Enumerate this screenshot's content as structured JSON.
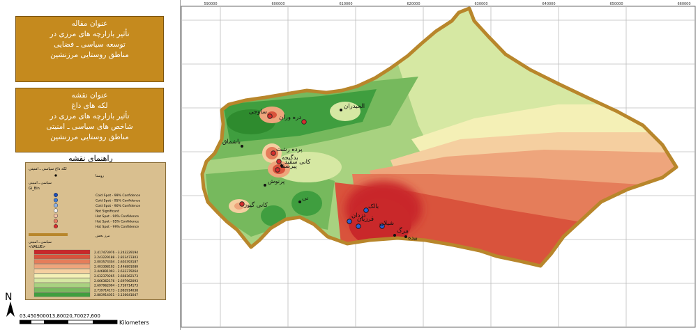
{
  "sidebar": {
    "article_box": {
      "heading": "عنوان مقاله",
      "lines": [
        "تأثیر بازارچه های مرزی در",
        "توسعه سیاسی ـ فضایی",
        "مناطق روستایی مرزنشین"
      ]
    },
    "map_box": {
      "heading": "عنوان نقشه",
      "lines": [
        "لکه های داغ",
        "تأثیر بازارچه های مرزی در",
        "شاخص های سیاسی ـ امنیتی",
        "مناطق روستایی مرزنشین"
      ]
    },
    "legend_title": "راهنمای نقشه",
    "legend": {
      "header": "لکه داغ سیاسی ـ امنیتی",
      "sub_header": "روستا",
      "section2": "سیاسی ـ امنیتی",
      "unit": "Gi_Bin",
      "hotspot_items": [
        {
          "label": "Cold Spot - 99% Confidence",
          "color": "#1f4fb8"
        },
        {
          "label": "Cold Spot - 95% Confidence",
          "color": "#3d7ad6"
        },
        {
          "label": "Cold Spot - 90% Confidence",
          "color": "#8fb3e6"
        },
        {
          "label": "Not Significant",
          "color": "#f2f2f2"
        },
        {
          "label": "Hot Spot - 90% Confidence",
          "color": "#f5c3a8"
        },
        {
          "label": "Hot Spot - 95% Confidence",
          "color": "#e57a62"
        },
        {
          "label": "Hot Spot - 99% Confidence",
          "color": "#d62d2d"
        }
      ],
      "boundary_label": "مرز بخش",
      "raster_title": "سیاسی ـ امنیتی",
      "raster_unit": "<VALUE>",
      "raster_classes": [
        {
          "label": "2.417473976 - 3.243229194",
          "color": "#c9282a"
        },
        {
          "label": "2.243229188 - 2.823473303",
          "color": "#d9533c"
        },
        {
          "label": "2.003573304 - 2.603393187",
          "color": "#e57d5a"
        },
        {
          "label": "2.403398192 - 2.446891089",
          "color": "#eea57c"
        },
        {
          "label": "2.446891093 - 2.632379264",
          "color": "#f5cfa0"
        },
        {
          "label": "2.632379265 - 2.666362173",
          "color": "#f4f0b6"
        },
        {
          "label": "2.666362176 - 2.697962093",
          "color": "#d6e8a3"
        },
        {
          "label": "2.697962094 - 2.739714173",
          "color": "#a8d280"
        },
        {
          "label": "2.739714173 - 2.883914038",
          "color": "#76b95d"
        },
        {
          "label": "2.883914051 - 3.136641047",
          "color": "#3f9e3f"
        }
      ]
    },
    "north_label": "N",
    "scale_numbers": "03,450900013,80020,70027,600",
    "scale_unit": "Kilometers"
  },
  "map": {
    "x_ticks": [
      "590000",
      "600000",
      "610000",
      "620000",
      "630000",
      "640000",
      "650000",
      "660000"
    ],
    "villages": [
      {
        "name": "الحیدران",
        "type": "neutral"
      },
      {
        "name": "ساوجی",
        "type": "hot"
      },
      {
        "name": "دره وران",
        "type": "hot"
      },
      {
        "name": "باشماق",
        "type": "neutral"
      },
      {
        "name": "پرده رشت",
        "type": "hot"
      },
      {
        "name": "بدگیجه",
        "type": "hot"
      },
      {
        "name": "کانی سفید",
        "type": "neutral"
      },
      {
        "name": "پیرصفا",
        "type": "hot"
      },
      {
        "name": "پرنوش",
        "type": "neutral"
      },
      {
        "name": "کانی گیوز",
        "type": "hot"
      },
      {
        "name": "نی",
        "type": "neutral"
      },
      {
        "name": "بالک",
        "type": "cold"
      },
      {
        "name": "قرزیان",
        "type": "cold"
      },
      {
        "name": "دزدان",
        "type": "cold"
      },
      {
        "name": "شیلان",
        "type": "cold"
      },
      {
        "name": "مرگ",
        "type": "neutral"
      },
      {
        "name": "بیده",
        "type": "neutral"
      }
    ],
    "colors": {
      "boundary": "#b8862b",
      "hot": "#d62d2d",
      "cold": "#2a5fd0"
    }
  }
}
